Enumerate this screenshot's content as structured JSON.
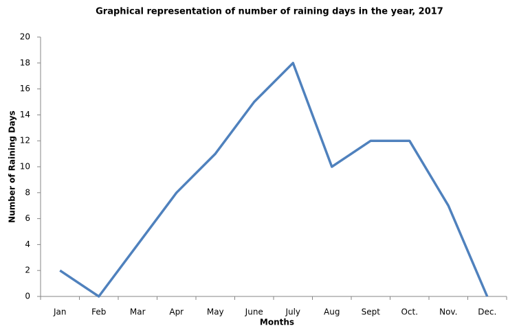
{
  "chart_data": {
    "type": "line",
    "title": "Graphical representation of number of raining days in the year, 2017",
    "x_label": "Months",
    "y_label": "Number of Raining Days",
    "categories": [
      "Jan",
      "Feb",
      "Mar",
      "Apr",
      "May",
      "June",
      "July",
      "Aug",
      "Sept",
      "Oct.",
      "Nov.",
      "Dec."
    ],
    "values": [
      2,
      0,
      4,
      8,
      11,
      15,
      18,
      10,
      12,
      12,
      7,
      0
    ],
    "color": "#4f81bd",
    "ylim": [
      0,
      20
    ],
    "yticks": [
      0,
      2,
      4,
      6,
      8,
      10,
      12,
      14,
      16,
      18,
      20
    ],
    "grid": false
  }
}
